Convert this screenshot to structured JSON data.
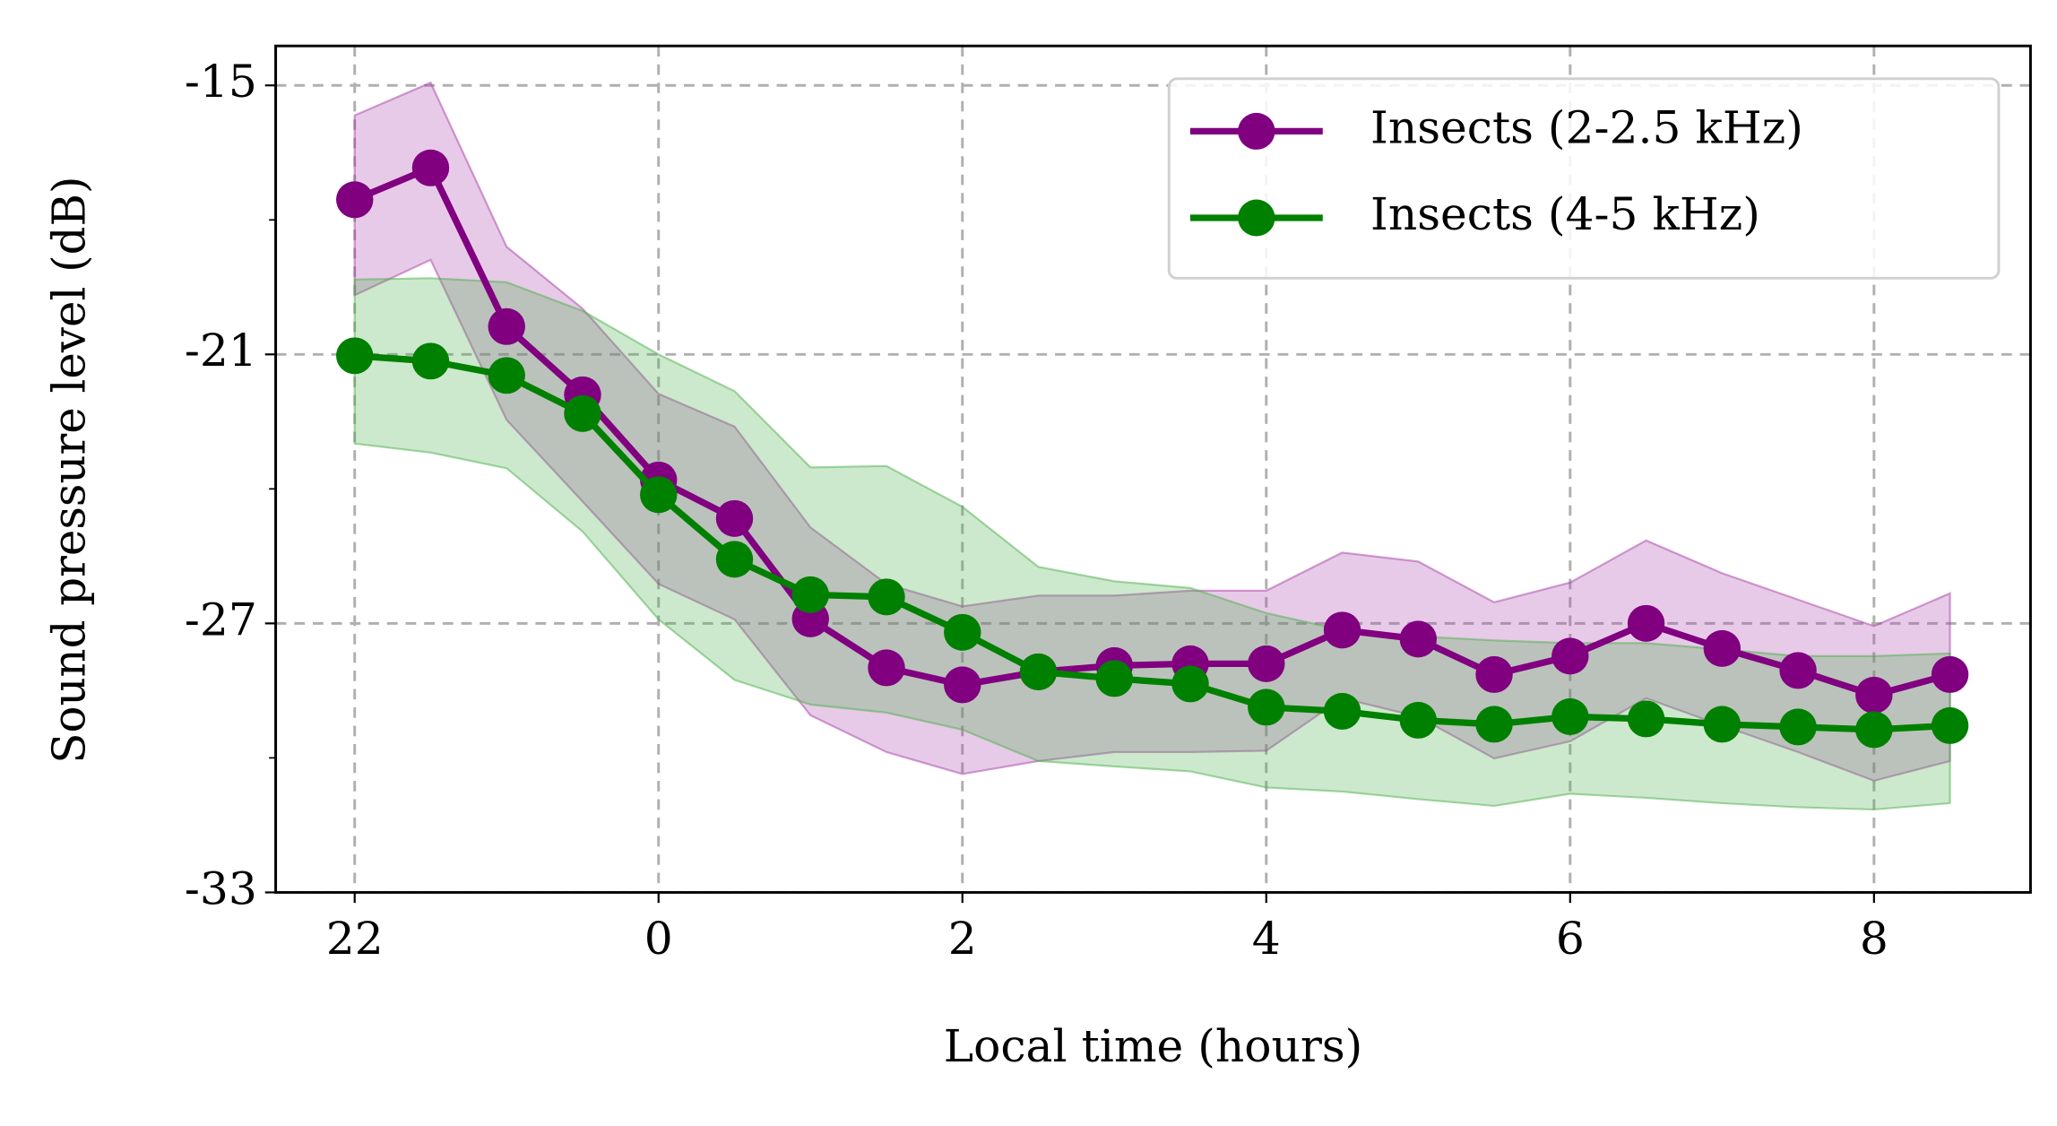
{
  "chart_data": {
    "type": "line",
    "xlabel": "Local time (hours)",
    "ylabel": "Sound pressure level (dB)",
    "x": [
      -2,
      -1.5,
      -1,
      -0.5,
      0,
      0.5,
      1,
      1.5,
      2,
      2.5,
      3,
      3.5,
      4,
      4.5,
      5,
      5.5,
      6,
      6.5,
      7,
      7.5,
      8,
      8.5
    ],
    "xlim": [
      -2.52,
      9.03
    ],
    "xticks": [
      {
        "value": -2,
        "label": "22"
      },
      0,
      2,
      4,
      6,
      8
    ],
    "ylim": [
      -33,
      -14.12
    ],
    "yticks": [
      -33,
      -27,
      -21,
      -15
    ],
    "y_minor_ticks": [
      -30,
      -24,
      -18
    ],
    "grid": true,
    "legend": "upper right",
    "series": [
      {
        "name": "Insects (2-2.5 kHz)",
        "color": "#800080",
        "band_color": "#a840a8",
        "values": [
          -17.55,
          -16.84,
          -20.38,
          -21.9,
          -23.8,
          -24.66,
          -26.9,
          -27.99,
          -28.37,
          -28.08,
          -27.94,
          -27.9,
          -27.9,
          -27.15,
          -27.35,
          -28.14,
          -27.73,
          -27.0,
          -27.56,
          -28.05,
          -28.6,
          -28.14
        ],
        "upper": [
          -15.67,
          -14.94,
          -18.6,
          -19.98,
          -21.88,
          -22.61,
          -24.86,
          -26.12,
          -26.62,
          -26.38,
          -26.38,
          -26.27,
          -26.27,
          -25.42,
          -25.62,
          -26.53,
          -26.09,
          -25.15,
          -25.88,
          -26.47,
          -27.06,
          -26.33
        ],
        "lower": [
          -19.68,
          -18.89,
          -22.46,
          -24.28,
          -26.12,
          -26.91,
          -29.05,
          -29.87,
          -30.36,
          -30.07,
          -29.87,
          -29.87,
          -29.84,
          -28.67,
          -29.08,
          -30.01,
          -29.63,
          -28.67,
          -29.28,
          -29.87,
          -30.51,
          -30.07
        ]
      },
      {
        "name": "Insects (4-5 kHz)",
        "color": "#008000",
        "band_color": "#4caf4c",
        "values": [
          -21.03,
          -21.15,
          -21.47,
          -22.32,
          -24.13,
          -25.57,
          -26.36,
          -26.41,
          -27.2,
          -28.08,
          -28.23,
          -28.35,
          -28.87,
          -28.96,
          -29.16,
          -29.25,
          -29.08,
          -29.13,
          -29.25,
          -29.31,
          -29.37,
          -29.28
        ],
        "upper": [
          -19.33,
          -19.3,
          -19.39,
          -20.03,
          -21.0,
          -21.82,
          -23.52,
          -23.49,
          -24.4,
          -25.74,
          -26.06,
          -26.21,
          -26.77,
          -27.15,
          -27.29,
          -27.38,
          -27.44,
          -27.44,
          -27.58,
          -27.73,
          -27.73,
          -27.67
        ],
        "lower": [
          -22.99,
          -23.19,
          -23.54,
          -24.95,
          -26.91,
          -28.26,
          -28.81,
          -28.99,
          -29.37,
          -30.07,
          -30.19,
          -30.3,
          -30.66,
          -30.75,
          -30.92,
          -31.07,
          -30.8,
          -30.89,
          -31.01,
          -31.1,
          -31.15,
          -31.01
        ]
      }
    ]
  }
}
